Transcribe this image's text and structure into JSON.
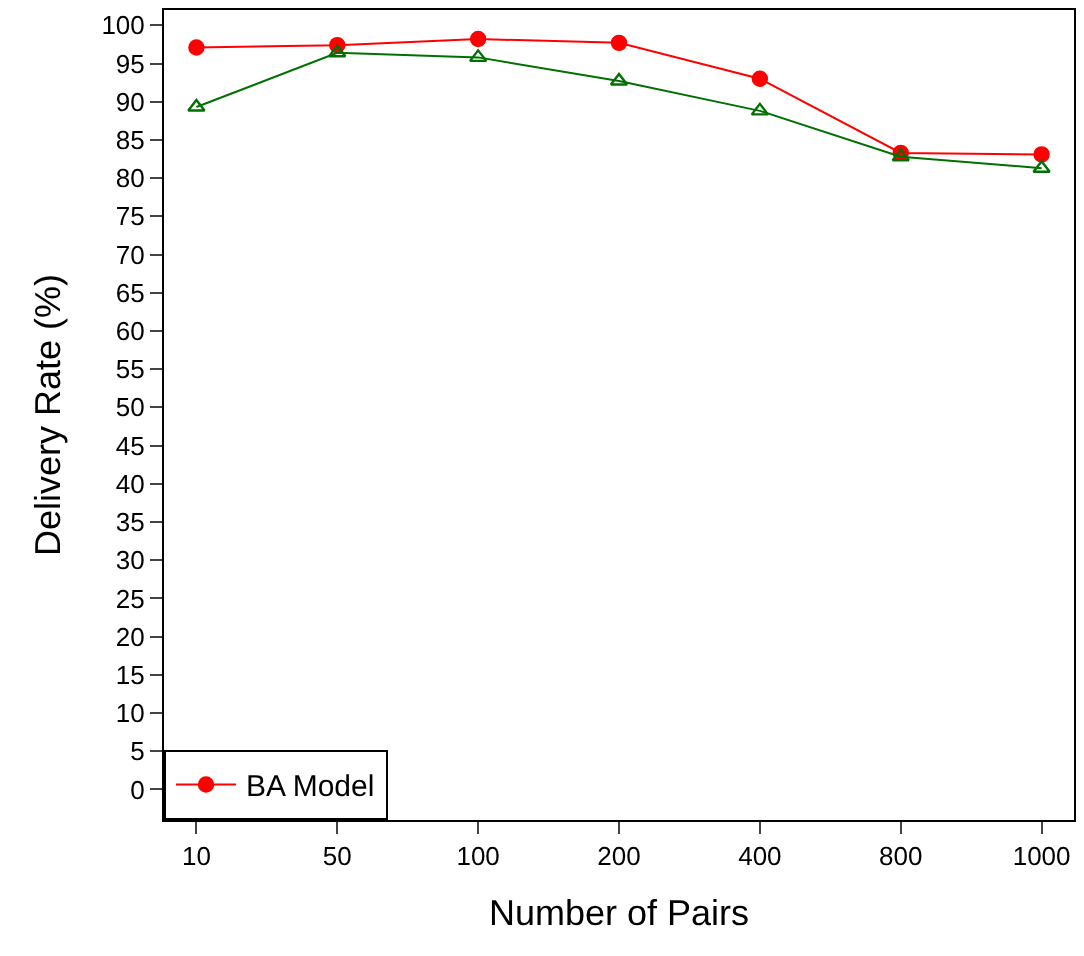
{
  "chart_data": {
    "type": "line",
    "xlabel": "Number of Pairs",
    "ylabel": "Delivery Rate (%)",
    "categories": [
      "10",
      "50",
      "100",
      "200",
      "400",
      "800",
      "1000"
    ],
    "series": [
      {
        "color": "#007000",
        "marker": "triangle",
        "values": [
          89.3,
          96.4,
          95.8,
          92.7,
          88.8,
          82.8,
          81.3
        ]
      },
      {
        "name": "BA Model",
        "color": "#ff0000",
        "marker": "circle",
        "values": [
          97.1,
          97.4,
          98.2,
          97.7,
          93.0,
          83.3,
          83.1
        ]
      }
    ],
    "ylim": [
      -4,
      102
    ],
    "yticks": [
      0,
      5,
      10,
      15,
      20,
      25,
      30,
      35,
      40,
      45,
      50,
      55,
      60,
      65,
      70,
      75,
      80,
      85,
      90,
      95,
      100
    ],
    "legend": "bottom left"
  }
}
